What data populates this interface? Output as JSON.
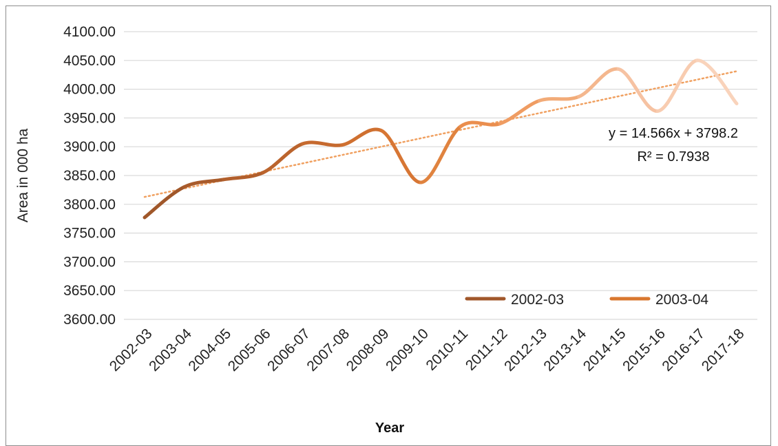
{
  "chart_data": {
    "type": "line",
    "title": "",
    "xlabel": "Year",
    "ylabel": "Area in 000 ha",
    "ylim": [
      3600,
      4100
    ],
    "ytick_step": 50,
    "ytick_labels": [
      "3600.00",
      "3650.00",
      "3700.00",
      "3750.00",
      "3800.00",
      "3850.00",
      "3900.00",
      "3950.00",
      "4000.00",
      "4050.00",
      "4100.00"
    ],
    "categories": [
      "2002-03",
      "2003-04",
      "2004-05",
      "2005-06",
      "2006-07",
      "2007-08",
      "2008-09",
      "2009-10",
      "2010-11",
      "2011-12",
      "2012-13",
      "2013-14",
      "2014-15",
      "2015-16",
      "2016-17",
      "2017-18"
    ],
    "values": [
      3777,
      3830,
      3843,
      3855,
      3905,
      3903,
      3928,
      3838,
      3935,
      3940,
      3980,
      3987,
      4035,
      3962,
      4050,
      3975
    ],
    "grid": true,
    "legend": {
      "position": "bottom-right",
      "entries": [
        {
          "label": "2002-03",
          "color": "#a0572a"
        },
        {
          "label": "2003-04",
          "color": "#d9772f"
        }
      ]
    },
    "colors": [
      "#a0572a",
      "#a95b2b",
      "#b25f2c",
      "#bb642d",
      "#c66a2f",
      "#cf7030",
      "#d77634",
      "#e0833f",
      "#ea8e4e",
      "#ef9c62",
      "#f2ab78",
      "#f4b78e",
      "#f6c2a2",
      "#f8ccb0",
      "#f9d3bb",
      "#f9d3bb"
    ],
    "trendline": {
      "slope": 14.566,
      "intercept": 3798.2,
      "color": "#f0a060",
      "equation": "y = 14.566x + 3798.2",
      "r_squared": "R² = 0.7938"
    }
  }
}
